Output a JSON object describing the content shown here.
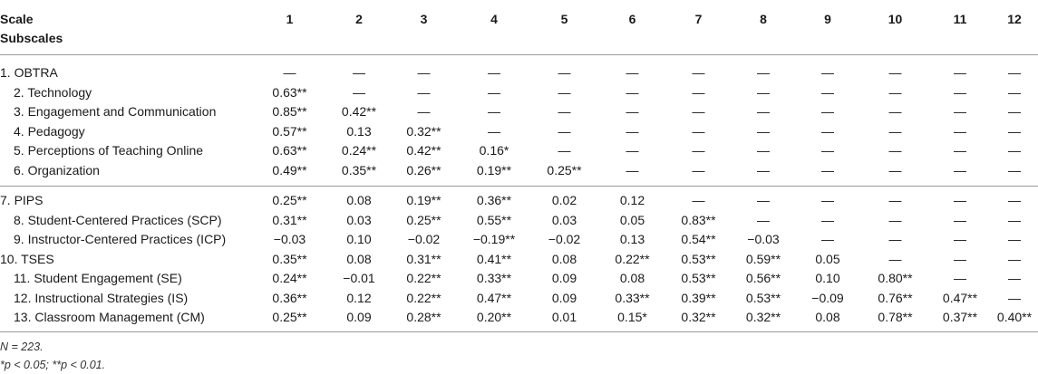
{
  "header": {
    "corner_line1": "Scale",
    "corner_line2": "Subscales",
    "columns": [
      "1",
      "2",
      "3",
      "4",
      "5",
      "6",
      "7",
      "8",
      "9",
      "10",
      "11",
      "12"
    ]
  },
  "group1": [
    {
      "label": "1. OBTRA",
      "indent": false,
      "cells": [
        "—",
        "—",
        "—",
        "—",
        "—",
        "—",
        "—",
        "—",
        "—",
        "—",
        "—",
        "—"
      ]
    },
    {
      "label": "2. Technology",
      "indent": true,
      "cells": [
        "0.63**",
        "—",
        "—",
        "—",
        "—",
        "—",
        "—",
        "—",
        "—",
        "—",
        "—",
        "—"
      ]
    },
    {
      "label": "3. Engagement and Communication",
      "indent": true,
      "cells": [
        "0.85**",
        "0.42**",
        "—",
        "—",
        "—",
        "—",
        "—",
        "—",
        "—",
        "—",
        "—",
        "—"
      ]
    },
    {
      "label": "4. Pedagogy",
      "indent": true,
      "cells": [
        "0.57**",
        "0.13",
        "0.32**",
        "—",
        "—",
        "—",
        "—",
        "—",
        "—",
        "—",
        "—",
        "—"
      ]
    },
    {
      "label": "5. Perceptions of Teaching Online",
      "indent": true,
      "cells": [
        "0.63**",
        "0.24**",
        "0.42**",
        "0.16*",
        "—",
        "—",
        "—",
        "—",
        "—",
        "—",
        "—",
        "—"
      ]
    },
    {
      "label": "6. Organization",
      "indent": true,
      "cells": [
        "0.49**",
        "0.35**",
        "0.26**",
        "0.19**",
        "0.25**",
        "—",
        "—",
        "—",
        "—",
        "—",
        "—",
        "—"
      ]
    }
  ],
  "group2": [
    {
      "label": "7. PIPS",
      "indent": false,
      "cells": [
        "0.25**",
        "0.08",
        "0.19**",
        "0.36**",
        "0.02",
        "0.12",
        "—",
        "—",
        "—",
        "—",
        "—",
        "—"
      ]
    },
    {
      "label": "8. Student-Centered Practices (SCP)",
      "indent": true,
      "cells": [
        "0.31**",
        "0.03",
        "0.25**",
        "0.55**",
        "0.03",
        "0.05",
        "0.83**",
        "—",
        "—",
        "—",
        "—",
        "—"
      ]
    },
    {
      "label": "9. Instructor-Centered Practices (ICP)",
      "indent": true,
      "cells": [
        "−0.03",
        "0.10",
        "−0.02",
        "−0.19**",
        "−0.02",
        "0.13",
        "0.54**",
        "−0.03",
        "—",
        "—",
        "—",
        "—"
      ]
    },
    {
      "label": "10. TSES",
      "indent": false,
      "cells": [
        "0.35**",
        "0.08",
        "0.31**",
        "0.41**",
        "0.08",
        "0.22**",
        "0.53**",
        "0.59**",
        "0.05",
        "—",
        "—",
        "—"
      ]
    },
    {
      "label": "11. Student Engagement (SE)",
      "indent": true,
      "cells": [
        "0.24**",
        "−0.01",
        "0.22**",
        "0.33**",
        "0.09",
        "0.08",
        "0.53**",
        "0.56**",
        "0.10",
        "0.80**",
        "—",
        "—"
      ]
    },
    {
      "label": "12. Instructional Strategies (IS)",
      "indent": true,
      "cells": [
        "0.36**",
        "0.12",
        "0.22**",
        "0.47**",
        "0.09",
        "0.33**",
        "0.39**",
        "0.53**",
        "−0.09",
        "0.76**",
        "0.47**",
        "—"
      ]
    },
    {
      "label": "13. Classroom Management (CM)",
      "indent": true,
      "cells": [
        "0.25**",
        "0.09",
        "0.28**",
        "0.20**",
        "0.01",
        "0.15*",
        "0.32**",
        "0.32**",
        "0.08",
        "0.78**",
        "0.37**",
        "0.40**"
      ]
    }
  ],
  "footnotes": {
    "n": "N = 223.",
    "sig": "*p < 0.05; **p < 0.01."
  }
}
